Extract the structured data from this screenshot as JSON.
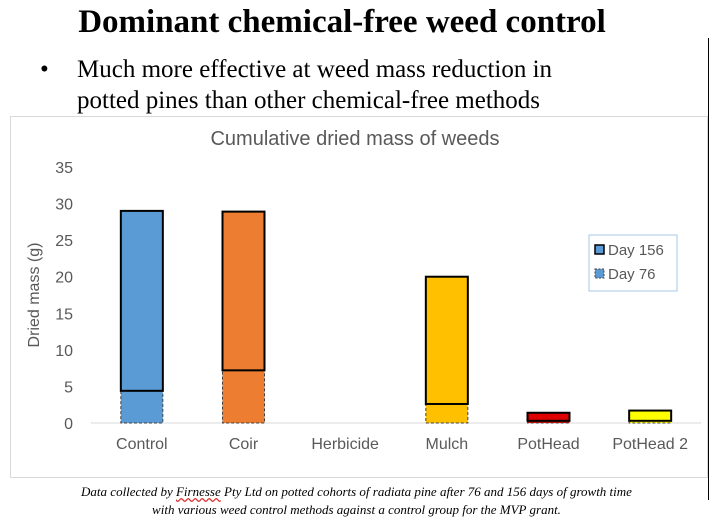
{
  "slide": {
    "title": "Dominant chemical-free weed control",
    "bullet_marker": "•",
    "bullet_line1": "Much more effective at weed mass reduction in",
    "bullet_line2": "potted pines than other chemical-free methods",
    "caption_prefix": "Data collected by ",
    "caption_company": "Firnesse",
    "caption_line1_rest": " Pty Ltd on potted cohorts of radiata pine after 76 and 156 days of growth time",
    "caption_line2": "with various weed control methods against a control group for the MVP grant."
  },
  "chart_data": {
    "type": "bar",
    "title": "Cumulative dried mass of weeds",
    "xlabel": "",
    "ylabel": "Dried mass (g)",
    "ylim": [
      0,
      35
    ],
    "yticks": [
      0,
      5,
      10,
      15,
      20,
      25,
      30,
      35
    ],
    "grid": false,
    "legend_position": "right",
    "categories": [
      "Control",
      "Coir",
      "Herbicide",
      "Mulch",
      "PotHead",
      "PotHead 2"
    ],
    "series": [
      {
        "name": "Day 156",
        "values": [
          29.0,
          28.9,
          0,
          20.0,
          1.4,
          1.7
        ]
      },
      {
        "name": "Day 76",
        "values": [
          4.4,
          7.2,
          0,
          2.6,
          0.3,
          0.3
        ]
      }
    ],
    "colors": [
      "#5b9bd5",
      "#ed7d31",
      "#a5a5a5",
      "#ffc000",
      "#e00000",
      "#ffff00"
    ]
  }
}
